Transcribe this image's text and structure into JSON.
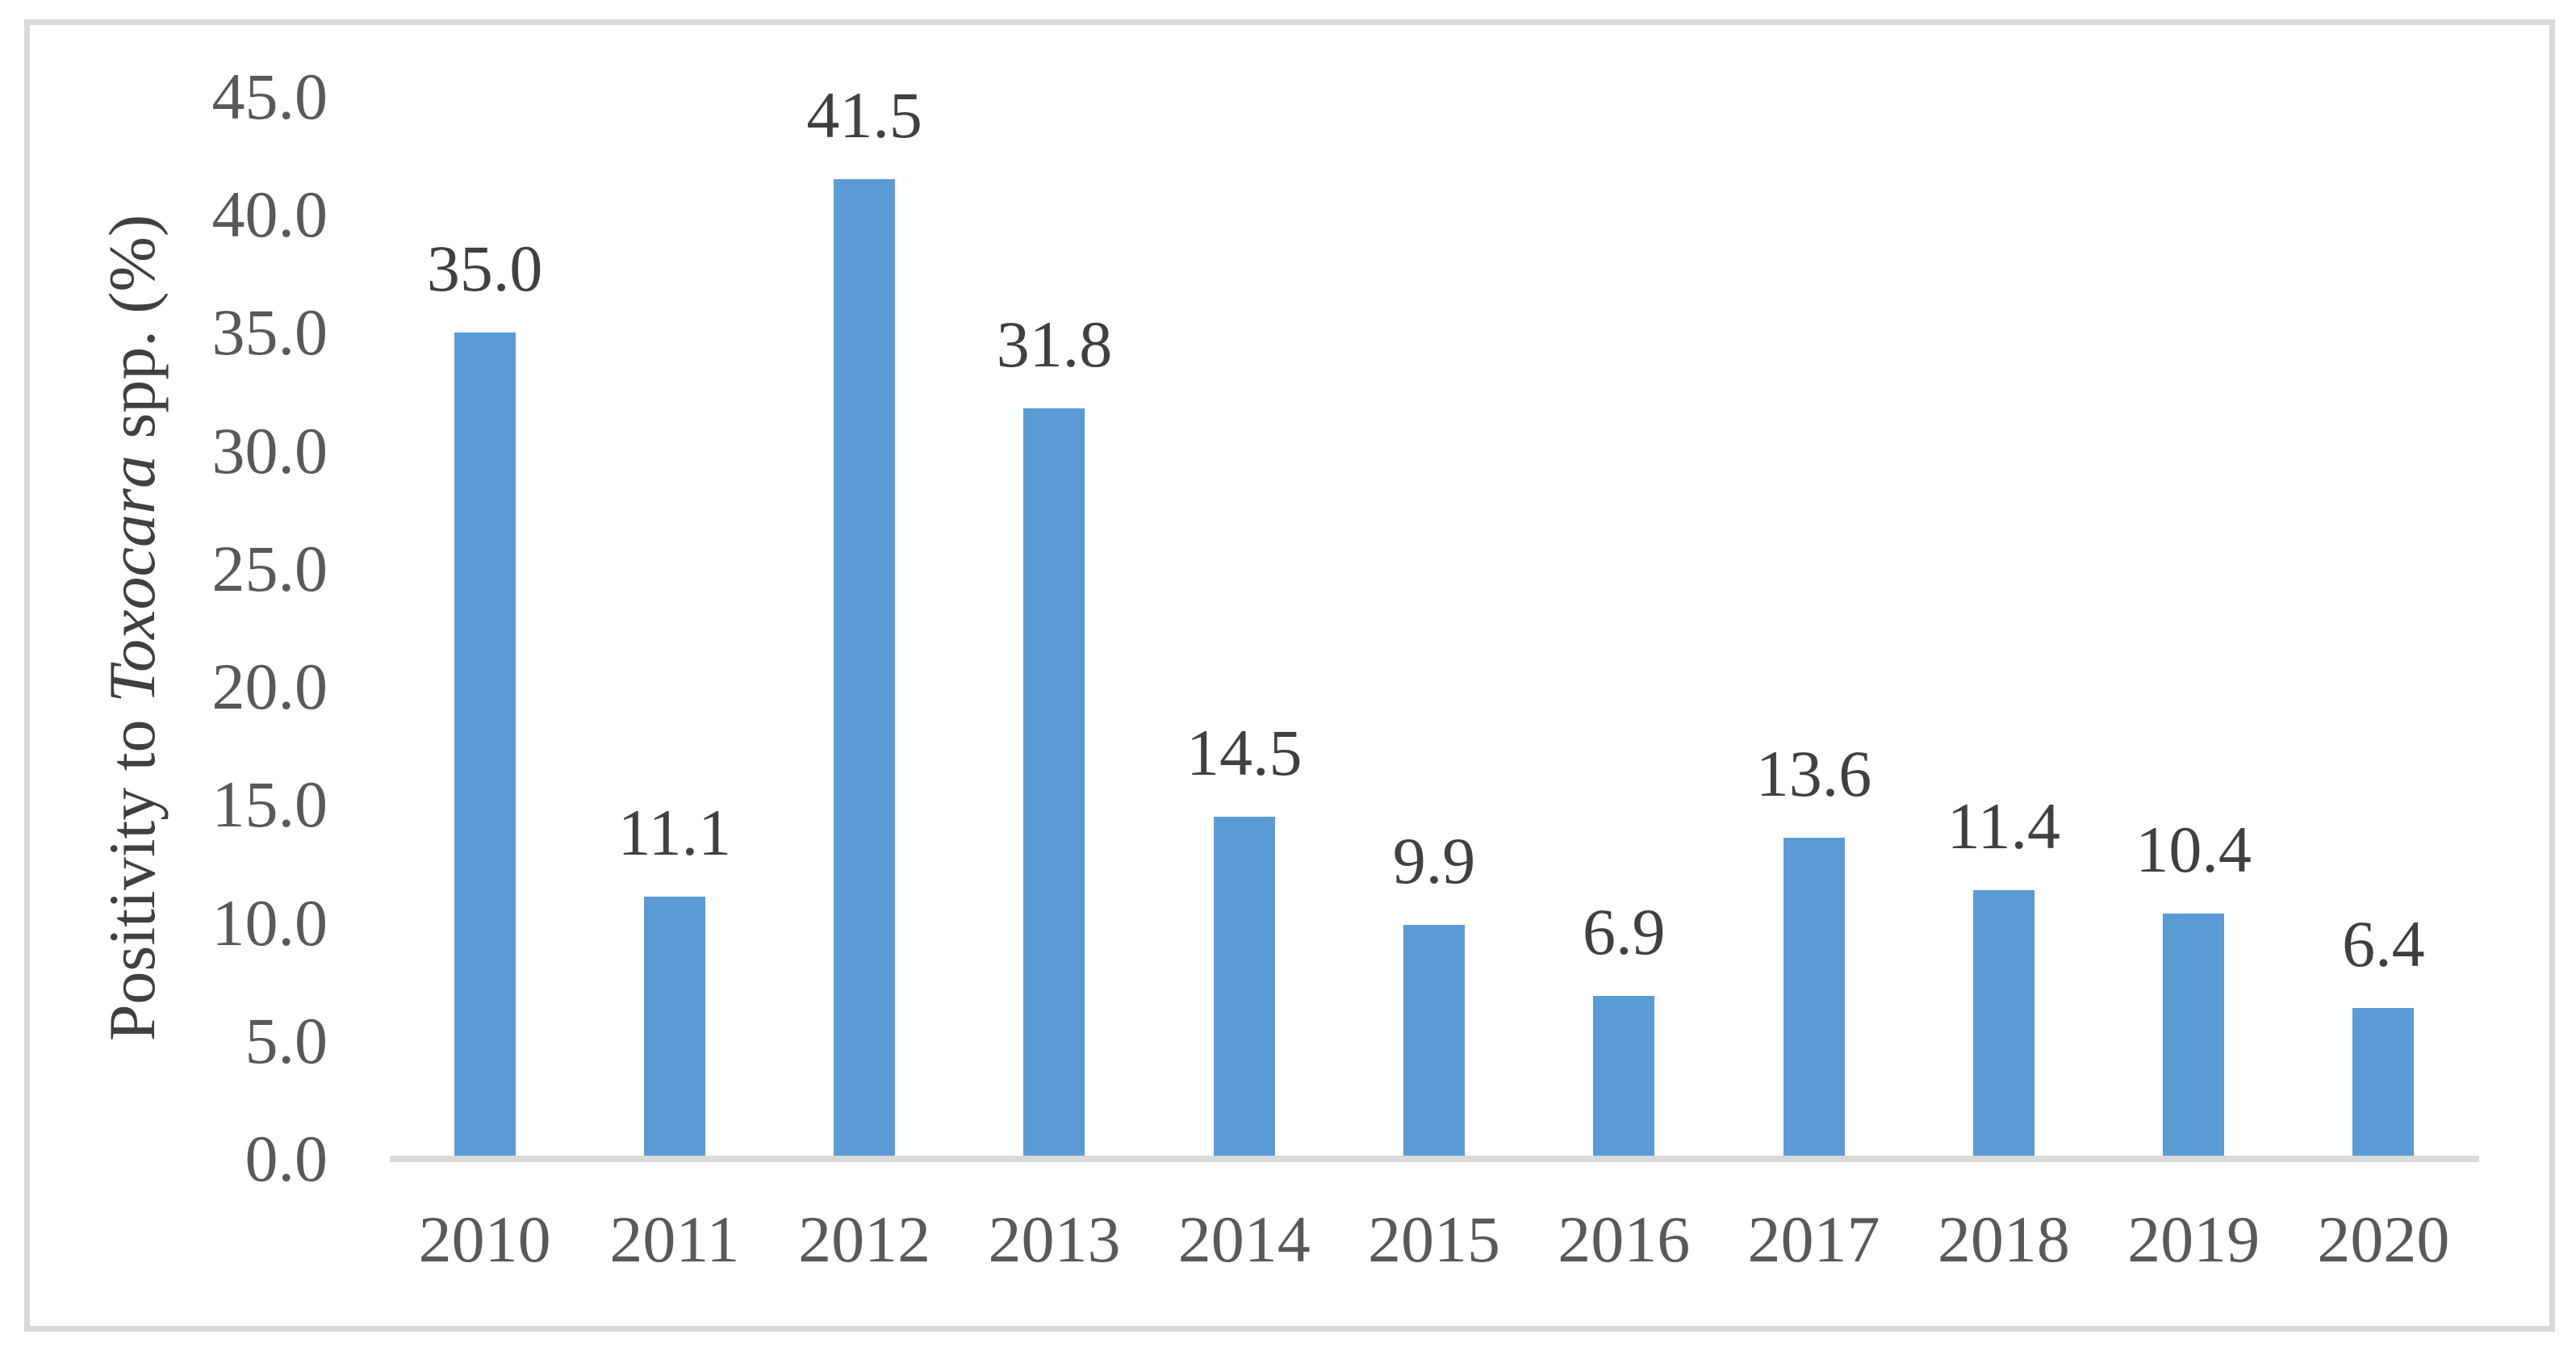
{
  "chart_data": {
    "type": "bar",
    "title": "",
    "categories": [
      "2010",
      "2011",
      "2012",
      "2013",
      "2014",
      "2015",
      "2016",
      "2017",
      "2018",
      "2019",
      "2020"
    ],
    "values": [
      35.0,
      11.1,
      41.5,
      31.8,
      14.5,
      9.9,
      6.9,
      13.6,
      11.4,
      10.4,
      6.4
    ],
    "data_labels": [
      "35.0",
      "11.1",
      "41.5",
      "31.8",
      "14.5",
      "9.9",
      "6.9",
      "13.6",
      "11.4",
      "10.4",
      "6.4"
    ],
    "xlabel": "",
    "ylabel_plain": "Positivity to Toxocara spp. (%)",
    "ylabel_parts": [
      {
        "text": "Positivity to ",
        "italic": false
      },
      {
        "text": "Toxocara",
        "italic": true
      },
      {
        "text": " spp. (%)",
        "italic": false
      }
    ],
    "ylim": [
      0,
      45
    ],
    "ytick_step": 5,
    "ytick_labels": [
      "0.0",
      "5.0",
      "10.0",
      "15.0",
      "20.0",
      "25.0",
      "30.0",
      "35.0",
      "40.0",
      "45.0"
    ],
    "grid": false,
    "legend": "none",
    "data_label_position": "outside-end",
    "colors": {
      "bar": "#5B9BD5",
      "axis_line": "#D9D9D9",
      "frame_border": "#D9D9D9",
      "tick_text": "#595959",
      "data_label_text": "#404040",
      "title_text": "#404040",
      "background": "#FFFFFF"
    }
  }
}
